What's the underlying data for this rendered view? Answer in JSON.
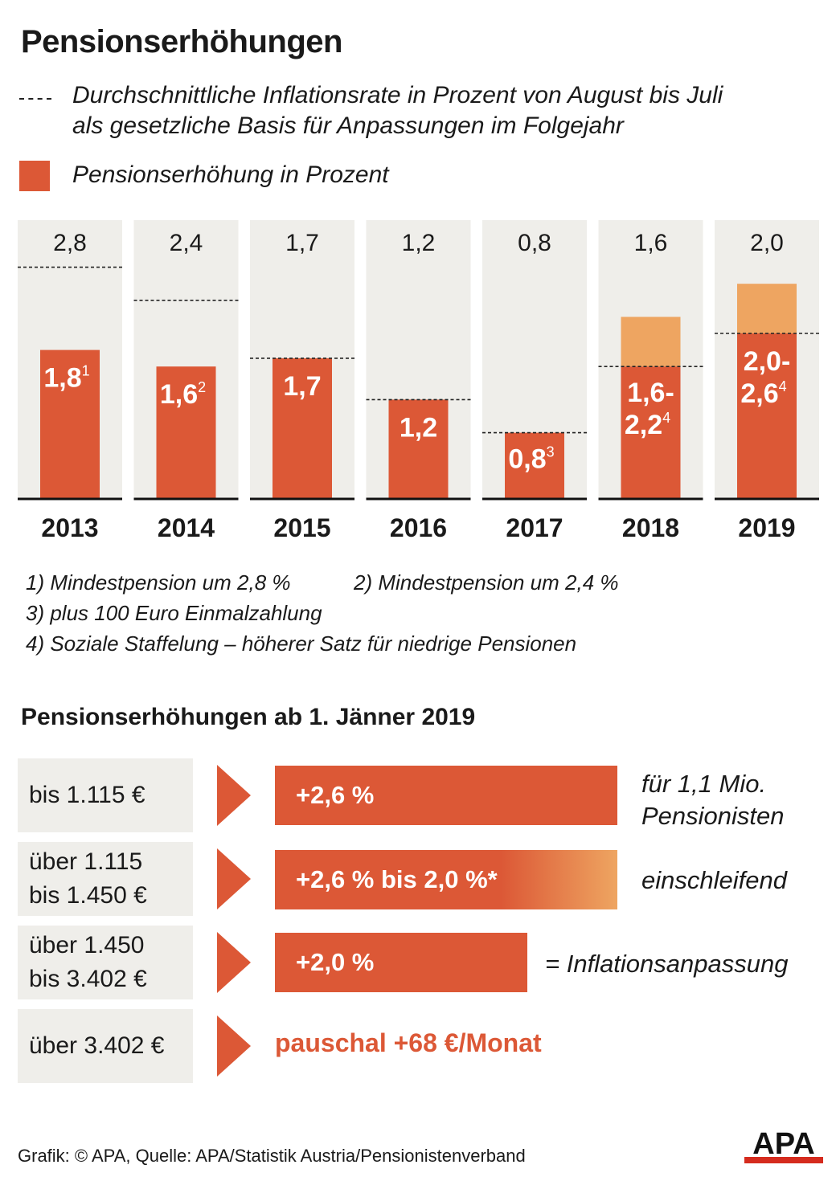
{
  "title": "Pensionserhöhungen",
  "legend": {
    "inflation_line1": "Durchschnittliche Inflationsrate in Prozent von August bis Juli",
    "inflation_line2": "als gesetzliche Basis für Anpassungen im Folgejahr",
    "increase": "Pensionserhöhung in Prozent"
  },
  "colors": {
    "bar": "#dc5836",
    "bar_range": "#eea561",
    "panel": "#efeeea",
    "text": "#1a1a1a"
  },
  "chart_data": {
    "type": "bar",
    "title": "Pensionserhöhungen",
    "ylabel": "Prozent",
    "ylim": [
      0,
      3.6
    ],
    "categories": [
      "2013",
      "2014",
      "2015",
      "2016",
      "2017",
      "2018",
      "2019"
    ],
    "inflation_labels": [
      "2,8",
      "2,4",
      "1,7",
      "1,2",
      "0,8",
      "1,6",
      "2,0"
    ],
    "inflation": [
      2.8,
      2.4,
      1.7,
      1.2,
      0.8,
      1.6,
      2.0
    ],
    "increase_min": [
      1.8,
      1.6,
      1.7,
      1.2,
      0.8,
      1.6,
      2.0
    ],
    "increase_max": [
      1.8,
      1.6,
      1.7,
      1.2,
      0.8,
      2.2,
      2.6
    ],
    "bar_labels": [
      {
        "lines": [
          "1,8"
        ],
        "sup": "1"
      },
      {
        "lines": [
          "1,6"
        ],
        "sup": "2"
      },
      {
        "lines": [
          "1,7"
        ],
        "sup": ""
      },
      {
        "lines": [
          "1,2"
        ],
        "sup": ""
      },
      {
        "lines": [
          "0,8"
        ],
        "sup": "3"
      },
      {
        "lines": [
          "1,6-",
          "2,2"
        ],
        "sup": "4"
      },
      {
        "lines": [
          "2,0-",
          "2,6"
        ],
        "sup": "4"
      }
    ]
  },
  "footnotes": {
    "f1": "1) Mindestpension um 2,8 %",
    "f2": "2) Mindestpension um 2,4 %",
    "f3": "3) plus 100 Euro Einmalzahlung",
    "f4": "4) Soziale Staffelung – höherer Satz für niedrige Pensionen"
  },
  "section2": {
    "title": "Pensionserhöhungen ab 1. Jänner 2019",
    "rows": [
      {
        "label1": "bis 1.115 €",
        "label2": "",
        "value": "+2,6 %",
        "note1": "für 1,1 Mio.",
        "note2": "Pensionisten",
        "bar_fraction": 1.0
      },
      {
        "label1": "über 1.115",
        "label2": "bis 1.450 €",
        "value": "+2,6 % bis 2,0 %*",
        "note1": "einschleifend",
        "note2": "",
        "bar_fraction": 1.0
      },
      {
        "label1": "über 1.450",
        "label2": "bis 3.402 €",
        "value": "+2,0 %",
        "note1": "= Inflationsanpassung",
        "note2": "",
        "bar_fraction": 0.7692
      },
      {
        "label1": "über 3.402 €",
        "label2": "",
        "value": "pauschal +68 €/Monat",
        "note1": "",
        "note2": "",
        "bar_fraction": 0
      }
    ]
  },
  "footer": "Grafik: © APA, Quelle: APA/Statistik Austria/Pensionistenverband",
  "logo_text": "APA"
}
